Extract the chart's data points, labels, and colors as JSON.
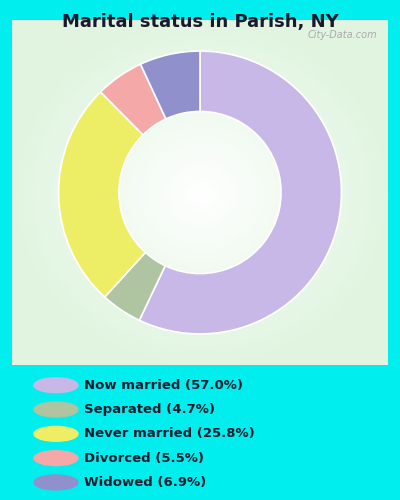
{
  "title": "Marital status in Parish, NY",
  "title_fontsize": 13,
  "bg_outer": "#00EEEE",
  "categories": [
    "Now married (57.0%)",
    "Separated (4.7%)",
    "Never married (25.8%)",
    "Divorced (5.5%)",
    "Widowed (6.9%)"
  ],
  "values": [
    57.0,
    4.7,
    25.8,
    5.5,
    6.9
  ],
  "colors": [
    "#c8b8e8",
    "#afc4a0",
    "#eeee66",
    "#f4a8a8",
    "#9090cc"
  ],
  "startangle": 90,
  "donut_width": 0.35,
  "figsize": [
    4.0,
    5.0
  ],
  "dpi": 100,
  "legend_fontsize": 9.5,
  "watermark": "City-Data.com"
}
